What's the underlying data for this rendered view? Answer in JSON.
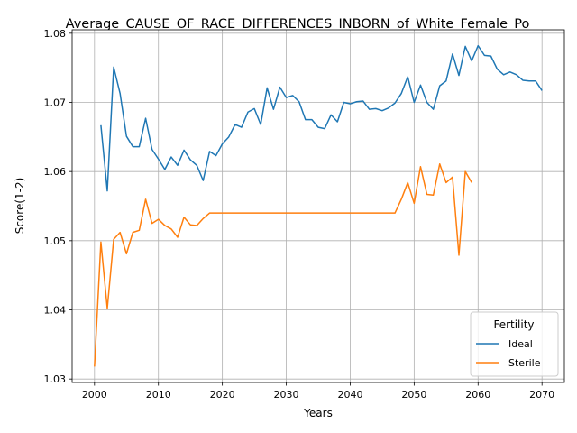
{
  "chart_data": {
    "type": "line",
    "title": "Average_CAUSE_OF_RACE_DIFFERENCES_INBORN_of_White_Female_Po",
    "xlabel": "Years",
    "ylabel": "Score(1-2)",
    "xlim": [
      1996.5,
      2073.5
    ],
    "ylim": [
      1.0295,
      1.0805
    ],
    "x_ticks": [
      2000,
      2010,
      2020,
      2030,
      2040,
      2050,
      2060,
      2070
    ],
    "y_ticks": [
      1.03,
      1.04,
      1.05,
      1.06,
      1.07,
      1.08
    ],
    "grid": true,
    "legend": {
      "title": "Fertility",
      "placement": "lower-right"
    },
    "series": [
      {
        "name": "Ideal",
        "color": "#1f77b4",
        "points": [
          [
            2001,
            1.0667
          ],
          [
            2002,
            1.0572
          ],
          [
            2003,
            1.0751
          ],
          [
            2004,
            1.0713
          ],
          [
            2005,
            1.0651
          ],
          [
            2006,
            1.0636
          ],
          [
            2007,
            1.0636
          ],
          [
            2008,
            1.0677
          ],
          [
            2009,
            1.0632
          ],
          [
            2010,
            1.0618
          ],
          [
            2011,
            1.0603
          ],
          [
            2012,
            1.0621
          ],
          [
            2013,
            1.0609
          ],
          [
            2014,
            1.0631
          ],
          [
            2015,
            1.0617
          ],
          [
            2016,
            1.0609
          ],
          [
            2017,
            1.0587
          ],
          [
            2018,
            1.0629
          ],
          [
            2019,
            1.0623
          ],
          [
            2020,
            1.064
          ],
          [
            2021,
            1.065
          ],
          [
            2022,
            1.0668
          ],
          [
            2023,
            1.0664
          ],
          [
            2024,
            1.0686
          ],
          [
            2025,
            1.0691
          ],
          [
            2026,
            1.0668
          ],
          [
            2027,
            1.0721
          ],
          [
            2028,
            1.069
          ],
          [
            2029,
            1.0722
          ],
          [
            2030,
            1.0707
          ],
          [
            2031,
            1.071
          ],
          [
            2032,
            1.0701
          ],
          [
            2033,
            1.0675
          ],
          [
            2034,
            1.0675
          ],
          [
            2035,
            1.0664
          ],
          [
            2036,
            1.0662
          ],
          [
            2037,
            1.0682
          ],
          [
            2038,
            1.0672
          ],
          [
            2039,
            1.07
          ],
          [
            2040,
            1.0698
          ],
          [
            2041,
            1.0701
          ],
          [
            2042,
            1.0702
          ],
          [
            2043,
            1.069
          ],
          [
            2044,
            1.0691
          ],
          [
            2045,
            1.0688
          ],
          [
            2046,
            1.0692
          ],
          [
            2047,
            1.0699
          ],
          [
            2048,
            1.0713
          ],
          [
            2049,
            1.0737
          ],
          [
            2050,
            1.07
          ],
          [
            2051,
            1.0725
          ],
          [
            2052,
            1.07
          ],
          [
            2053,
            1.069
          ],
          [
            2054,
            1.0724
          ],
          [
            2055,
            1.0731
          ],
          [
            2056,
            1.077
          ],
          [
            2057,
            1.0739
          ],
          [
            2058,
            1.0781
          ],
          [
            2059,
            1.076
          ],
          [
            2060,
            1.0782
          ],
          [
            2061,
            1.0768
          ],
          [
            2062,
            1.0767
          ],
          [
            2063,
            1.0748
          ],
          [
            2064,
            1.074
          ],
          [
            2065,
            1.0744
          ],
          [
            2066,
            1.074
          ],
          [
            2067,
            1.0732
          ],
          [
            2068,
            1.0731
          ],
          [
            2069,
            1.0731
          ],
          [
            2070,
            1.0717
          ]
        ]
      },
      {
        "name": "Sterile",
        "color": "#ff7f0e",
        "points": [
          [
            2000,
            1.0318
          ],
          [
            2001,
            1.0498
          ],
          [
            2002,
            1.0402
          ],
          [
            2003,
            1.0502
          ],
          [
            2004,
            1.0512
          ],
          [
            2005,
            1.0481
          ],
          [
            2006,
            1.0512
          ],
          [
            2007,
            1.0515
          ],
          [
            2008,
            1.056
          ],
          [
            2009,
            1.0525
          ],
          [
            2010,
            1.0531
          ],
          [
            2011,
            1.0522
          ],
          [
            2012,
            1.0517
          ],
          [
            2013,
            1.0505
          ],
          [
            2014,
            1.0534
          ],
          [
            2015,
            1.0523
          ],
          [
            2016,
            1.0522
          ],
          [
            2017,
            1.0532
          ],
          [
            2018,
            1.054
          ],
          [
            2019,
            1.054
          ],
          [
            2020,
            1.054
          ],
          [
            2021,
            1.054
          ],
          [
            2022,
            1.054
          ],
          [
            2023,
            1.054
          ],
          [
            2024,
            1.054
          ],
          [
            2025,
            1.054
          ],
          [
            2026,
            1.054
          ],
          [
            2027,
            1.054
          ],
          [
            2028,
            1.054
          ],
          [
            2029,
            1.054
          ],
          [
            2030,
            1.054
          ],
          [
            2031,
            1.054
          ],
          [
            2032,
            1.054
          ],
          [
            2033,
            1.054
          ],
          [
            2034,
            1.054
          ],
          [
            2035,
            1.054
          ],
          [
            2036,
            1.054
          ],
          [
            2037,
            1.054
          ],
          [
            2038,
            1.054
          ],
          [
            2039,
            1.054
          ],
          [
            2040,
            1.054
          ],
          [
            2041,
            1.054
          ],
          [
            2042,
            1.054
          ],
          [
            2043,
            1.054
          ],
          [
            2044,
            1.054
          ],
          [
            2045,
            1.054
          ],
          [
            2046,
            1.054
          ],
          [
            2047,
            1.054
          ],
          [
            2048,
            1.056
          ],
          [
            2049,
            1.0584
          ],
          [
            2050,
            1.0554
          ],
          [
            2051,
            1.0607
          ],
          [
            2052,
            1.0567
          ],
          [
            2053,
            1.0566
          ],
          [
            2054,
            1.0611
          ],
          [
            2055,
            1.0584
          ],
          [
            2056,
            1.0592
          ],
          [
            2057,
            1.0479
          ],
          [
            2058,
            1.06
          ],
          [
            2059,
            1.0584
          ]
        ]
      }
    ]
  }
}
